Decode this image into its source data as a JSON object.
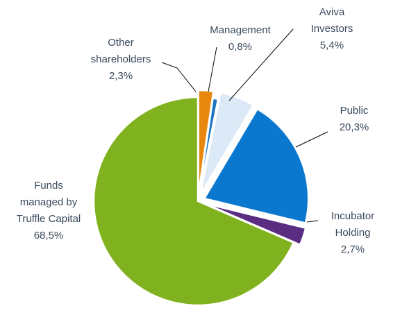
{
  "chart_data": {
    "type": "pie",
    "title": "",
    "slices": [
      {
        "label_lines": [
          "Other",
          "shareholders"
        ],
        "value_text": "2,3%",
        "value": 2.3,
        "color": "#e8870e",
        "exploded": true
      },
      {
        "label_lines": [
          "Management"
        ],
        "value_text": "0,8%",
        "value": 0.8,
        "color": "#1b75c2",
        "exploded": false
      },
      {
        "label_lines": [
          "Aviva",
          "Investors"
        ],
        "value_text": "5,4%",
        "value": 5.4,
        "color": "#dce9f7",
        "exploded": true
      },
      {
        "label_lines": [
          "Public"
        ],
        "value_text": "20,3%",
        "value": 20.3,
        "color": "#0b78cf",
        "exploded": true
      },
      {
        "label_lines": [
          "Incubator",
          "Holding"
        ],
        "value_text": "2,7%",
        "value": 2.7,
        "color": "#5a2d82",
        "exploded": true
      },
      {
        "label_lines": [
          "Funds",
          "managed by",
          "Truffle Capital"
        ],
        "value_text": "68,5%",
        "value": 68.5,
        "color": "#7fb21e",
        "exploded": false
      }
    ]
  }
}
